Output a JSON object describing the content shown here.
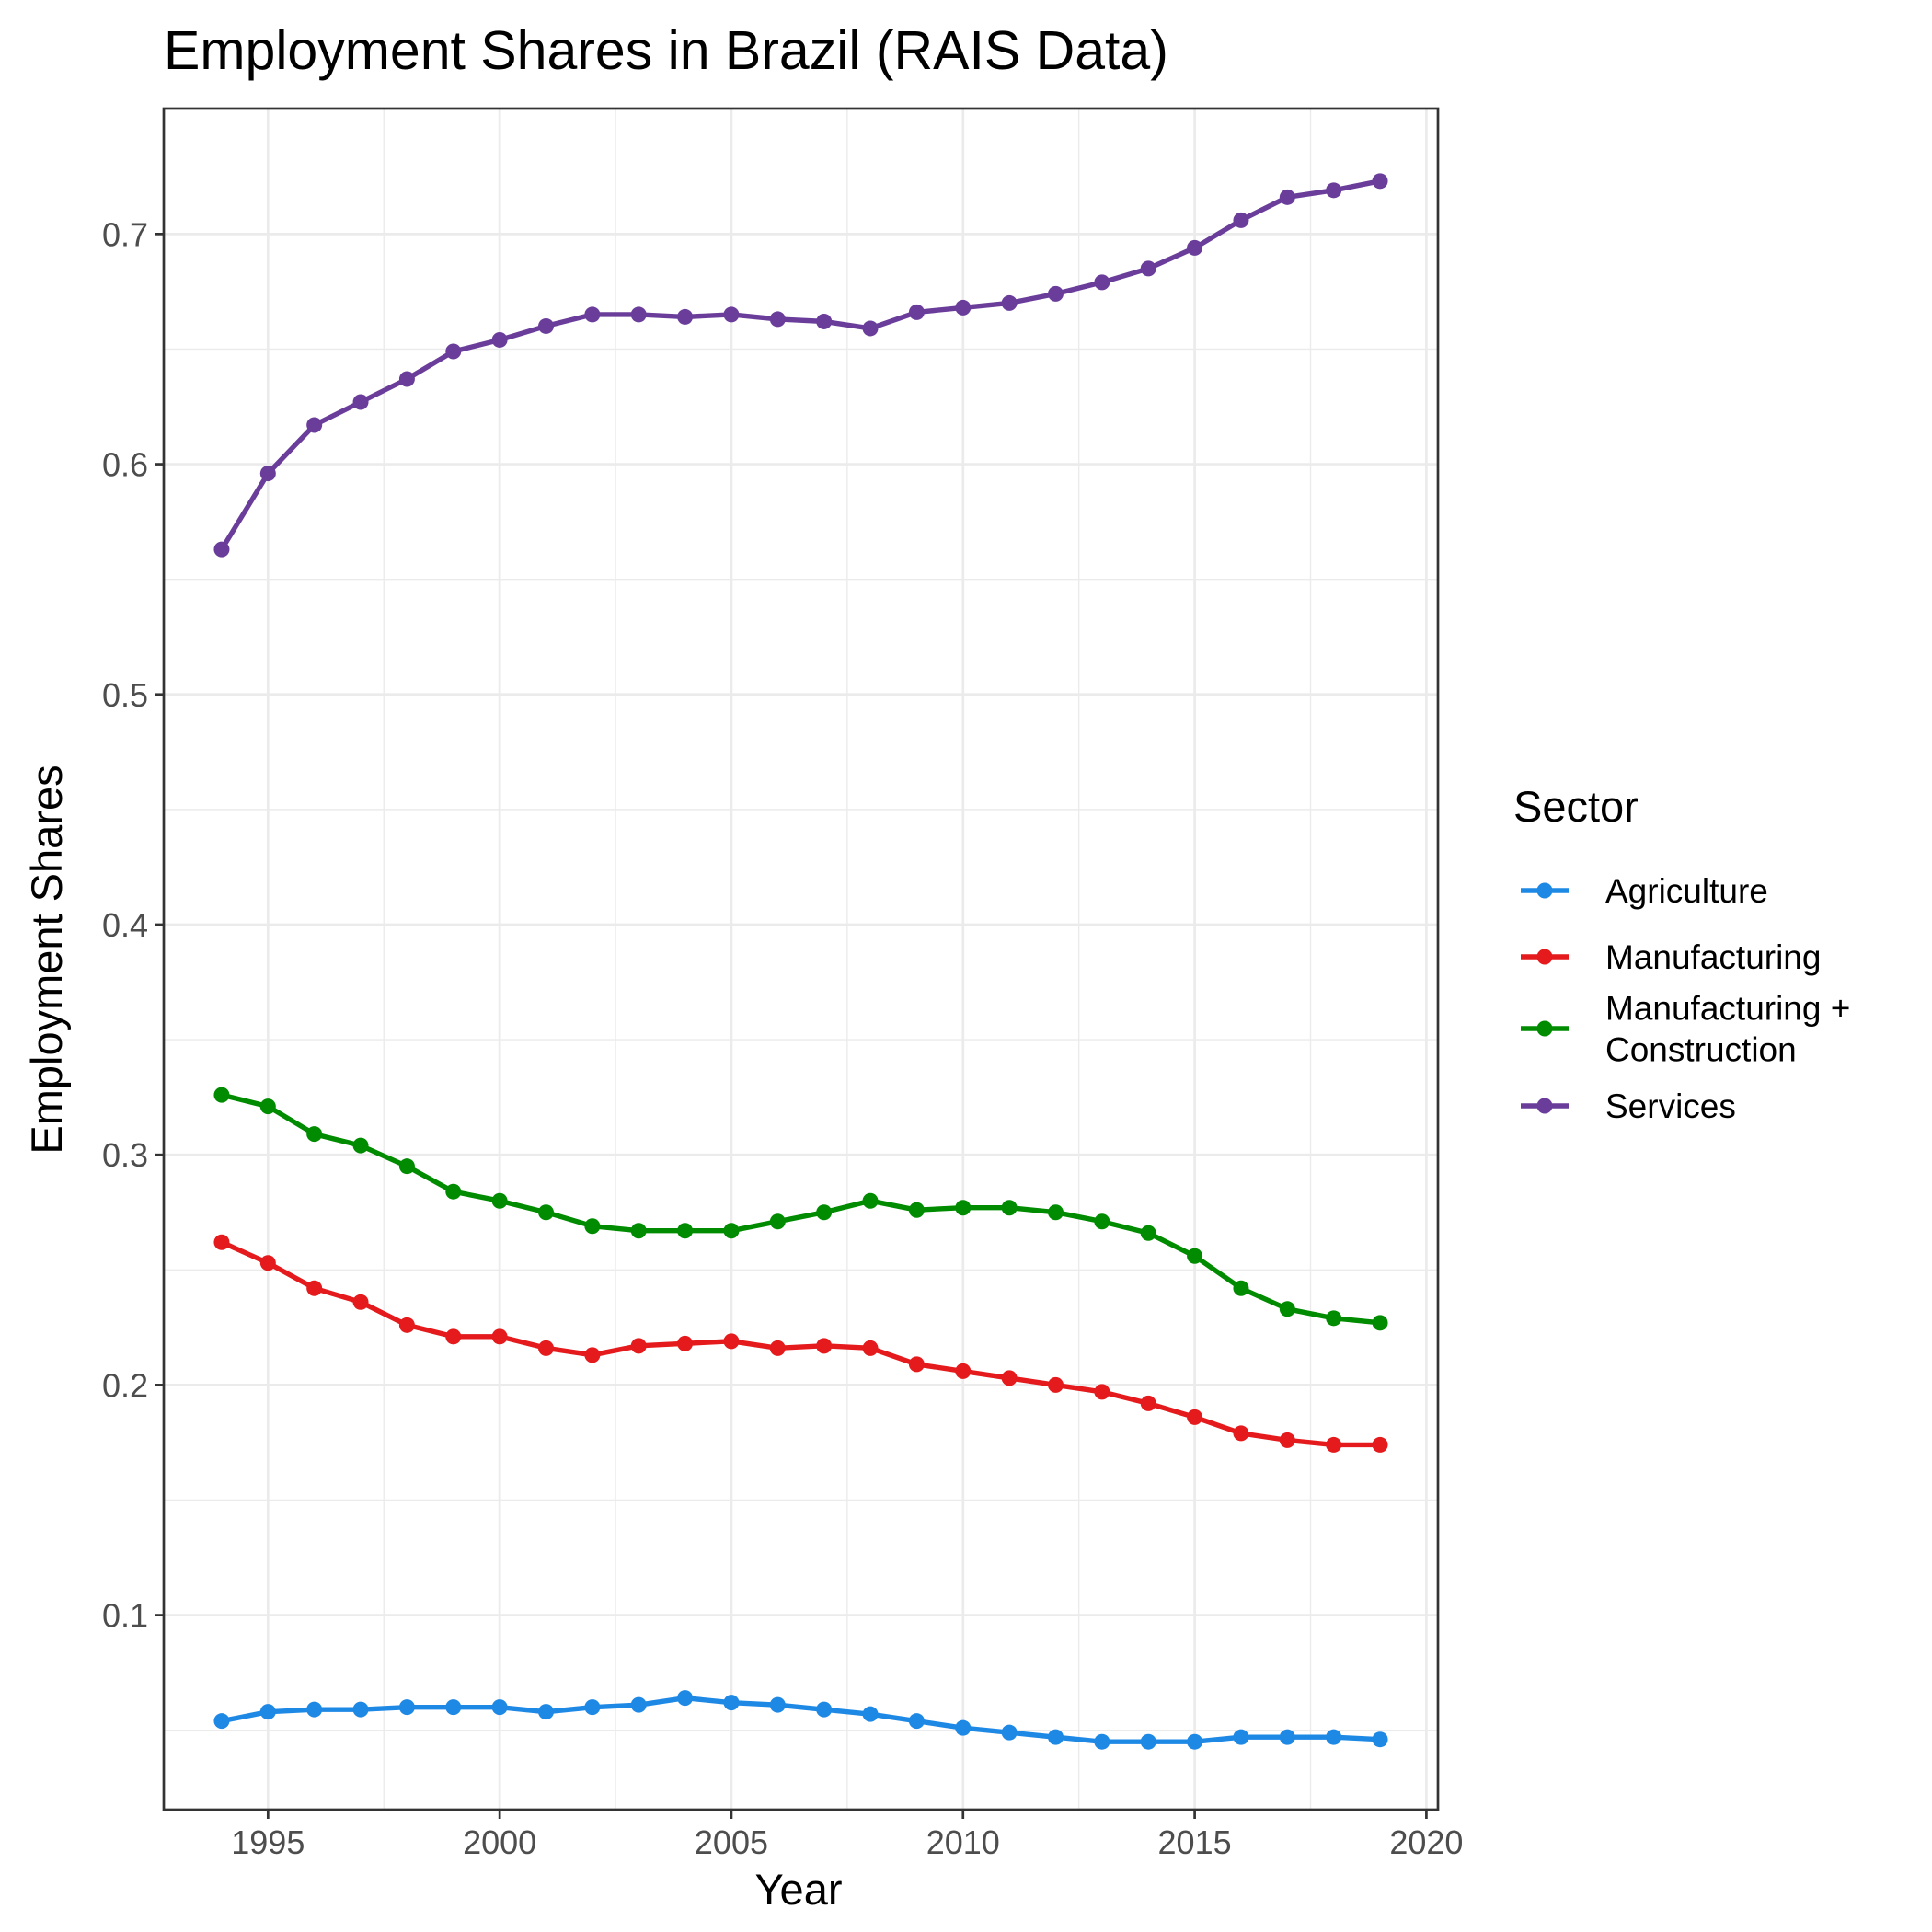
{
  "chart_data": {
    "type": "line",
    "title": "Employment Shares in Brazil (RAIS Data)",
    "xlabel": "Year",
    "ylabel": "Employment Shares",
    "xlim": [
      1992.75,
      2020.25
    ],
    "ylim": [
      0.0155,
      0.7545
    ],
    "x_ticks": [
      1995,
      2000,
      2005,
      2010,
      2015,
      2020
    ],
    "x_tick_labels": [
      "1995",
      "2000",
      "2005",
      "2010",
      "2015",
      "2020"
    ],
    "y_ticks": [
      0.1,
      0.2,
      0.3,
      0.4,
      0.5,
      0.6,
      0.7
    ],
    "y_tick_labels": [
      "0.1",
      "0.2",
      "0.3",
      "0.4",
      "0.5",
      "0.6",
      "0.7"
    ],
    "grid": true,
    "legend": {
      "title": "Sector",
      "position": "right",
      "entries": [
        {
          "lines": [
            "Agriculture"
          ]
        },
        {
          "lines": [
            "Manufacturing"
          ]
        },
        {
          "lines": [
            "Manufacturing +",
            "Construction"
          ]
        },
        {
          "lines": [
            "Services"
          ]
        }
      ]
    },
    "x": [
      1994,
      1995,
      1996,
      1997,
      1998,
      1999,
      2000,
      2001,
      2002,
      2003,
      2004,
      2005,
      2006,
      2007,
      2008,
      2009,
      2010,
      2011,
      2012,
      2013,
      2014,
      2015,
      2016,
      2017,
      2018,
      2019
    ],
    "series": [
      {
        "name": "Agriculture",
        "color": "#1E88E5",
        "values": [
          0.054,
          0.058,
          0.059,
          0.059,
          0.06,
          0.06,
          0.06,
          0.058,
          0.06,
          0.061,
          0.064,
          0.062,
          0.061,
          0.059,
          0.057,
          0.054,
          0.051,
          0.049,
          0.047,
          0.045,
          0.045,
          0.045,
          0.047,
          0.047,
          0.047,
          0.046
        ]
      },
      {
        "name": "Manufacturing",
        "color": "#E41A1C",
        "values": [
          0.262,
          0.253,
          0.242,
          0.236,
          0.226,
          0.221,
          0.221,
          0.216,
          0.213,
          0.217,
          0.218,
          0.219,
          0.216,
          0.217,
          0.216,
          0.209,
          0.206,
          0.203,
          0.2,
          0.197,
          0.192,
          0.186,
          0.179,
          0.176,
          0.174,
          0.174
        ]
      },
      {
        "name": "Manufacturing + Construction",
        "color": "#008B00",
        "values": [
          0.326,
          0.321,
          0.309,
          0.304,
          0.295,
          0.284,
          0.28,
          0.275,
          0.269,
          0.267,
          0.267,
          0.267,
          0.271,
          0.275,
          0.28,
          0.276,
          0.277,
          0.277,
          0.275,
          0.271,
          0.266,
          0.256,
          0.242,
          0.233,
          0.229,
          0.227
        ]
      },
      {
        "name": "Services",
        "color": "#6A3D9A",
        "values": [
          0.563,
          0.596,
          0.617,
          0.627,
          0.637,
          0.649,
          0.654,
          0.66,
          0.665,
          0.665,
          0.664,
          0.665,
          0.663,
          0.662,
          0.659,
          0.666,
          0.668,
          0.67,
          0.674,
          0.679,
          0.685,
          0.694,
          0.706,
          0.716,
          0.719,
          0.723
        ]
      }
    ]
  }
}
